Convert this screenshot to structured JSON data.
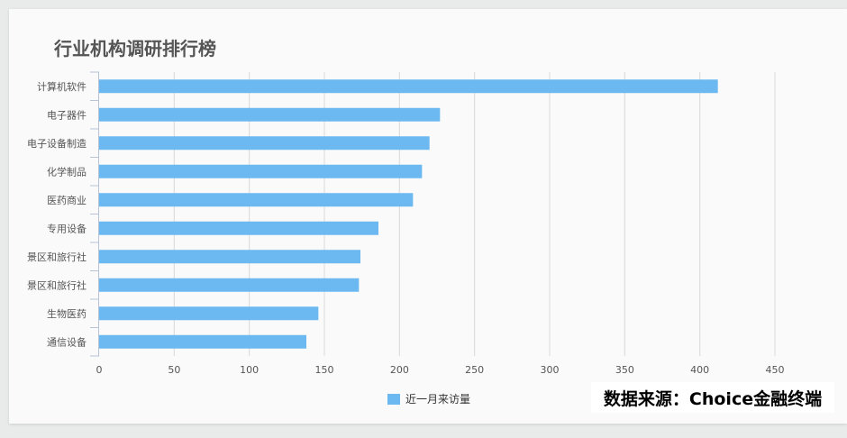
{
  "title": "行业机构调研排行榜",
  "source_text": "数据来源：Choice金融终端",
  "colors": {
    "bar": "#6cb9f2",
    "grid": "#d9d9d9",
    "axis": "#b8c4d6"
  },
  "chart_data": {
    "type": "bar",
    "orientation": "horizontal",
    "title": "行业机构调研排行榜",
    "categories": [
      "计算机软件",
      "电子器件",
      "电子设备制造",
      "化学制品",
      "医药商业",
      "专用设备",
      "景区和旅行社",
      "景区和旅行社",
      "生物医药",
      "通信设备"
    ],
    "series": [
      {
        "name": "近一月来访量",
        "values": [
          412,
          227,
          220,
          215,
          209,
          186,
          174,
          173,
          146,
          138
        ]
      }
    ],
    "xlim": [
      0,
      450
    ],
    "xticks": [
      0,
      50,
      100,
      150,
      200,
      250,
      300,
      350,
      400,
      450
    ],
    "grid": "vertical",
    "legend_position": "bottom-center"
  }
}
